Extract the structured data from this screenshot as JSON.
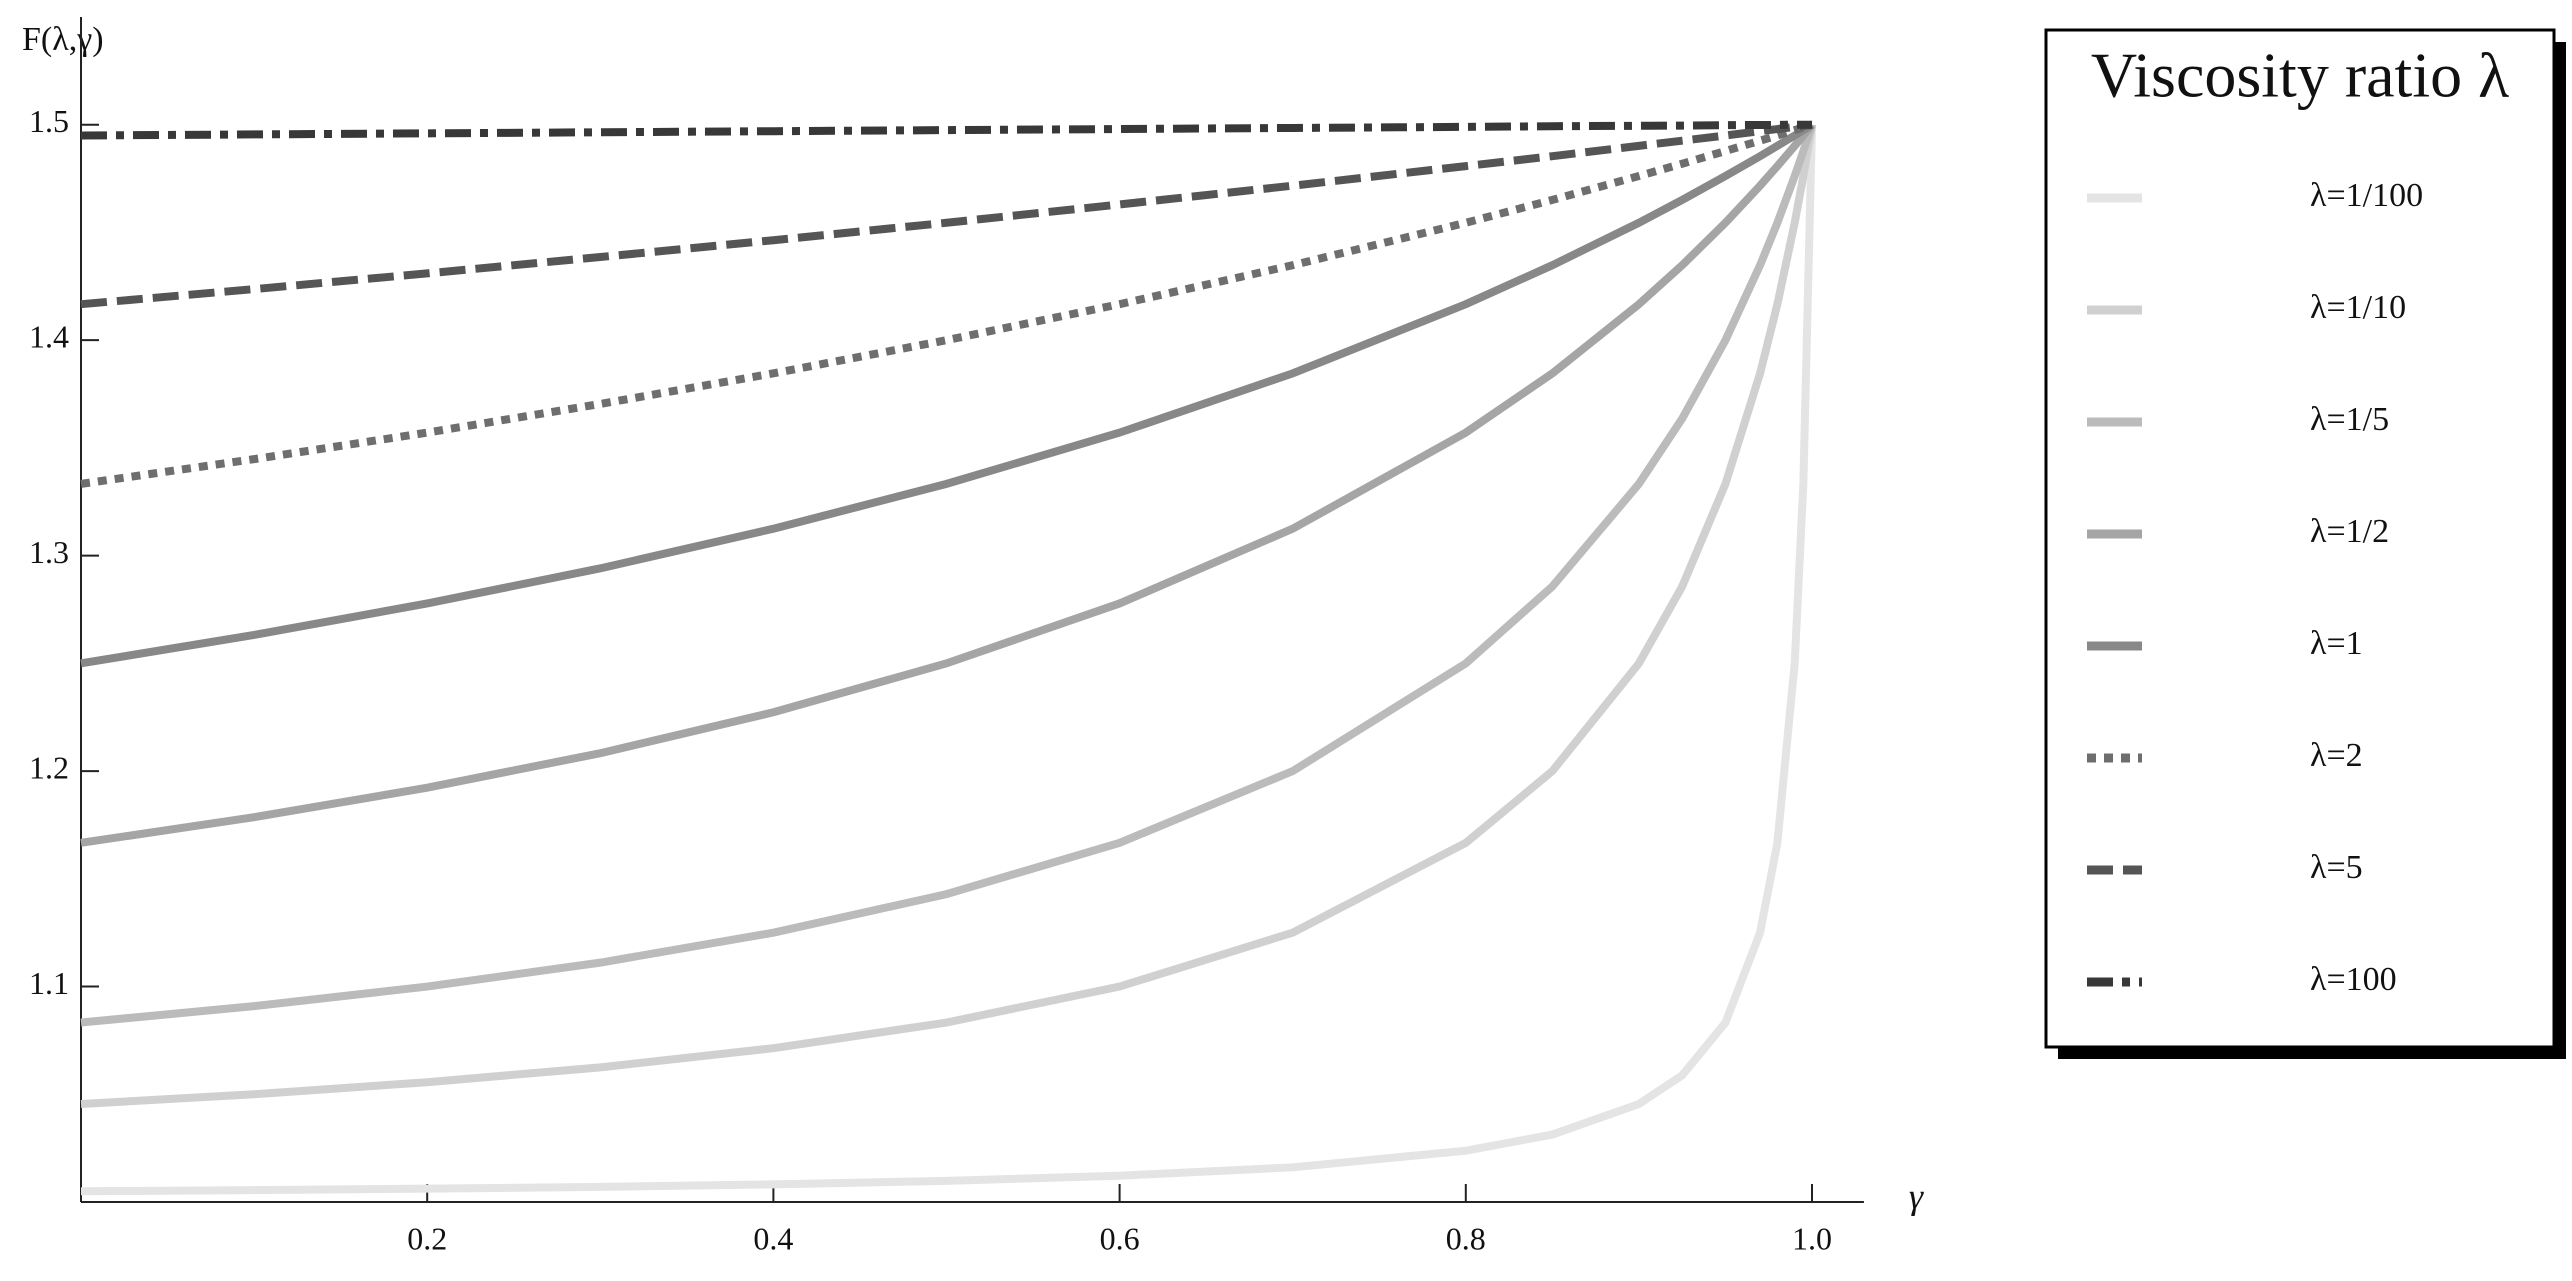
{
  "chart_data": {
    "type": "line",
    "y_label": "F(λ,γ)",
    "x_label": "γ",
    "legend_title": "Viscosity ratio λ",
    "legend_position": "right",
    "x": [
      0,
      0.1,
      0.2,
      0.3,
      0.4,
      0.5,
      0.6,
      0.7,
      0.8,
      0.85,
      0.9,
      0.925,
      0.95,
      0.97,
      0.98,
      0.99,
      0.995,
      1
    ],
    "series": [
      {
        "name": "λ=1/100",
        "color": "#e4e4e4",
        "style": "solid",
        "values": [
          1.005,
          1.0055,
          1.0062,
          1.007,
          1.0082,
          1.0098,
          1.0122,
          1.0161,
          1.0238,
          1.0313,
          1.0455,
          1.0588,
          1.0833,
          1.125,
          1.1667,
          1.25,
          1.3333,
          1.5
        ]
      },
      {
        "name": "λ=1/10",
        "color": "#d0d0d0",
        "style": "solid",
        "values": [
          1.0455,
          1.05,
          1.0556,
          1.0625,
          1.0714,
          1.0833,
          1.1,
          1.125,
          1.1667,
          1.2,
          1.25,
          1.2857,
          1.3333,
          1.3846,
          1.4167,
          1.4545,
          1.4762,
          1.5
        ]
      },
      {
        "name": "λ=1/5",
        "color": "#bbbbbb",
        "style": "solid",
        "values": [
          1.0833,
          1.0909,
          1.1,
          1.1111,
          1.125,
          1.1429,
          1.1667,
          1.2,
          1.25,
          1.2857,
          1.3333,
          1.3636,
          1.4,
          1.4348,
          1.4545,
          1.4762,
          1.4878,
          1.5
        ]
      },
      {
        "name": "λ=1/2",
        "color": "#a5a5a5",
        "style": "solid",
        "values": [
          1.1667,
          1.1786,
          1.1923,
          1.2083,
          1.2273,
          1.25,
          1.2778,
          1.3125,
          1.3571,
          1.3846,
          1.4167,
          1.4348,
          1.4545,
          1.4717,
          1.4808,
          1.4902,
          1.495,
          1.5
        ]
      },
      {
        "name": "λ=1",
        "color": "#888888",
        "style": "solid",
        "values": [
          1.25,
          1.2632,
          1.2778,
          1.2941,
          1.3125,
          1.3333,
          1.3571,
          1.3846,
          1.4167,
          1.4348,
          1.4545,
          1.4651,
          1.4762,
          1.4854,
          1.4902,
          1.495,
          1.4975,
          1.5
        ]
      },
      {
        "name": "λ=2",
        "color": "#6e6e6e",
        "style": "dotted",
        "values": [
          1.3333,
          1.3448,
          1.3571,
          1.3704,
          1.3846,
          1.4,
          1.4167,
          1.4348,
          1.4545,
          1.4651,
          1.4762,
          1.4819,
          1.4878,
          1.4926,
          1.495,
          1.4975,
          1.4988,
          1.5
        ]
      },
      {
        "name": "λ=5",
        "color": "#555555",
        "style": "dashed",
        "values": [
          1.4167,
          1.4237,
          1.431,
          1.4386,
          1.4464,
          1.4545,
          1.463,
          1.4717,
          1.4808,
          1.4854,
          1.4902,
          1.4926,
          1.495,
          1.497,
          1.498,
          1.499,
          1.4995,
          1.5
        ]
      },
      {
        "name": "λ=100",
        "color": "#383838",
        "style": "dashdot",
        "values": [
          1.495,
          1.4955,
          1.496,
          1.4965,
          1.497,
          1.4975,
          1.498,
          1.4985,
          1.499,
          1.4993,
          1.4995,
          1.4996,
          1.4998,
          1.4999,
          1.4999,
          1.5,
          1.5,
          1.5
        ]
      }
    ],
    "xlim": [
      0,
      1.03
    ],
    "ylim": [
      1.0,
      1.55
    ],
    "xticks": [
      0.2,
      0.4,
      0.6,
      0.8,
      {
        "value": 1,
        "label": "1.0"
      }
    ],
    "yticks": [
      1.1,
      1.2,
      1.3,
      1.4,
      1.5
    ],
    "grid": false
  }
}
